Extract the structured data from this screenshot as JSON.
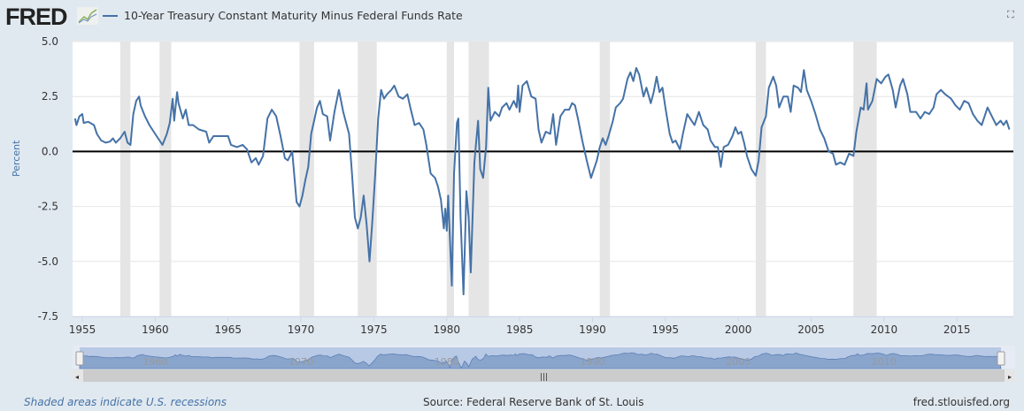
{
  "header": {
    "logo_text": "FRED",
    "legend_label": "10-Year Treasury Constant Maturity Minus Federal Funds Rate",
    "fullscreen_icon": "expand-icon"
  },
  "footer": {
    "note": "Shaded areas indicate U.S. recessions",
    "source": "Source: Federal Reserve Bank of St. Louis",
    "site": "fred.stlouisfed.org"
  },
  "colors": {
    "series": "#4572a7",
    "recession": "#e5e5e5",
    "zero_line": "#000000"
  },
  "chart_data": {
    "type": "line",
    "title": "10-Year Treasury Constant Maturity Minus Federal Funds Rate",
    "xlabel": "",
    "ylabel": "Percent",
    "xlim": [
      1954.5,
      2018.8
    ],
    "ylim": [
      -7.5,
      5.0
    ],
    "yticks": [
      "5.0",
      "2.5",
      "0.0",
      "-2.5",
      "-5.0",
      "-7.5"
    ],
    "ytick_values": [
      5.0,
      2.5,
      0.0,
      -2.5,
      -5.0,
      -7.5
    ],
    "xticks": [
      "1955",
      "1960",
      "1965",
      "1970",
      "1975",
      "1980",
      "1985",
      "1990",
      "1995",
      "2000",
      "2005",
      "2010",
      "2015"
    ],
    "navigator_ticks": [
      "1960",
      "1970",
      "1980",
      "1990",
      "2000",
      "2010"
    ],
    "grid": true,
    "recessions": [
      [
        1957.6,
        1958.3
      ],
      [
        1960.3,
        1961.1
      ],
      [
        1969.9,
        1970.9
      ],
      [
        1973.9,
        1975.2
      ],
      [
        1980.0,
        1980.5
      ],
      [
        1981.5,
        1982.9
      ],
      [
        1990.5,
        1991.2
      ],
      [
        2001.2,
        2001.9
      ],
      [
        2007.9,
        2009.5
      ]
    ],
    "series": [
      {
        "name": "10-Year Treasury Constant Maturity Minus Federal Funds Rate",
        "points": [
          [
            1954.5,
            1.5
          ],
          [
            1954.6,
            1.2
          ],
          [
            1954.8,
            1.6
          ],
          [
            1955.0,
            1.7
          ],
          [
            1955.1,
            1.3
          ],
          [
            1955.4,
            1.35
          ],
          [
            1955.8,
            1.2
          ],
          [
            1956.0,
            0.8
          ],
          [
            1956.3,
            0.5
          ],
          [
            1956.6,
            0.4
          ],
          [
            1956.9,
            0.45
          ],
          [
            1957.1,
            0.6
          ],
          [
            1957.3,
            0.4
          ],
          [
            1957.6,
            0.6
          ],
          [
            1957.9,
            0.9
          ],
          [
            1958.1,
            0.4
          ],
          [
            1958.3,
            0.3
          ],
          [
            1958.5,
            1.7
          ],
          [
            1958.7,
            2.3
          ],
          [
            1958.9,
            2.5
          ],
          [
            1959.0,
            2.1
          ],
          [
            1959.3,
            1.6
          ],
          [
            1959.6,
            1.2
          ],
          [
            1959.9,
            0.9
          ],
          [
            1960.2,
            0.6
          ],
          [
            1960.5,
            0.3
          ],
          [
            1960.8,
            0.8
          ],
          [
            1961.0,
            1.3
          ],
          [
            1961.2,
            2.4
          ],
          [
            1961.3,
            1.4
          ],
          [
            1961.5,
            2.7
          ],
          [
            1961.6,
            2.2
          ],
          [
            1961.9,
            1.5
          ],
          [
            1962.1,
            1.9
          ],
          [
            1962.3,
            1.2
          ],
          [
            1962.6,
            1.2
          ],
          [
            1963.0,
            1.0
          ],
          [
            1963.5,
            0.9
          ],
          [
            1963.7,
            0.4
          ],
          [
            1964.0,
            0.7
          ],
          [
            1964.5,
            0.7
          ],
          [
            1965.0,
            0.7
          ],
          [
            1965.2,
            0.3
          ],
          [
            1965.6,
            0.2
          ],
          [
            1966.0,
            0.3
          ],
          [
            1966.3,
            0.1
          ],
          [
            1966.6,
            -0.5
          ],
          [
            1966.9,
            -0.3
          ],
          [
            1967.1,
            -0.6
          ],
          [
            1967.4,
            -0.2
          ],
          [
            1967.7,
            1.5
          ],
          [
            1968.0,
            1.9
          ],
          [
            1968.3,
            1.6
          ],
          [
            1968.6,
            0.7
          ],
          [
            1968.9,
            -0.3
          ],
          [
            1969.1,
            -0.4
          ],
          [
            1969.4,
            0.0
          ],
          [
            1969.7,
            -2.3
          ],
          [
            1969.9,
            -2.5
          ],
          [
            1970.1,
            -2.0
          ],
          [
            1970.3,
            -1.3
          ],
          [
            1970.5,
            -0.7
          ],
          [
            1970.7,
            0.8
          ],
          [
            1970.9,
            1.4
          ],
          [
            1971.1,
            2.0
          ],
          [
            1971.3,
            2.3
          ],
          [
            1971.5,
            1.7
          ],
          [
            1971.8,
            1.6
          ],
          [
            1972.0,
            0.5
          ],
          [
            1972.3,
            1.8
          ],
          [
            1972.6,
            2.8
          ],
          [
            1972.9,
            1.8
          ],
          [
            1973.1,
            1.3
          ],
          [
            1973.3,
            0.8
          ],
          [
            1973.5,
            -1.0
          ],
          [
            1973.7,
            -3.0
          ],
          [
            1973.9,
            -3.5
          ],
          [
            1974.1,
            -3.0
          ],
          [
            1974.3,
            -2.0
          ],
          [
            1974.5,
            -3.3
          ],
          [
            1974.7,
            -5.0
          ],
          [
            1974.9,
            -3.1
          ],
          [
            1975.1,
            -1.0
          ],
          [
            1975.3,
            1.5
          ],
          [
            1975.5,
            2.8
          ],
          [
            1975.7,
            2.4
          ],
          [
            1975.9,
            2.6
          ],
          [
            1976.2,
            2.8
          ],
          [
            1976.4,
            3.0
          ],
          [
            1976.7,
            2.5
          ],
          [
            1977.0,
            2.4
          ],
          [
            1977.3,
            2.6
          ],
          [
            1977.5,
            2.0
          ],
          [
            1977.8,
            1.2
          ],
          [
            1978.1,
            1.3
          ],
          [
            1978.4,
            1.0
          ],
          [
            1978.6,
            0.3
          ],
          [
            1978.9,
            -1.0
          ],
          [
            1979.2,
            -1.2
          ],
          [
            1979.4,
            -1.6
          ],
          [
            1979.6,
            -2.2
          ],
          [
            1979.8,
            -3.5
          ],
          [
            1979.9,
            -2.6
          ],
          [
            1980.0,
            -3.6
          ],
          [
            1980.1,
            -2.0
          ],
          [
            1980.35,
            -6.1
          ],
          [
            1980.5,
            -1.0
          ],
          [
            1980.7,
            1.3
          ],
          [
            1980.8,
            1.5
          ],
          [
            1980.95,
            -3.0
          ],
          [
            1981.15,
            -6.5
          ],
          [
            1981.35,
            -1.8
          ],
          [
            1981.5,
            -3.0
          ],
          [
            1981.65,
            -5.5
          ],
          [
            1981.9,
            -0.5
          ],
          [
            1982.0,
            0.3
          ],
          [
            1982.15,
            1.4
          ],
          [
            1982.3,
            -0.8
          ],
          [
            1982.5,
            -1.2
          ],
          [
            1982.7,
            0.2
          ],
          [
            1982.85,
            2.9
          ],
          [
            1983.0,
            1.4
          ],
          [
            1983.3,
            1.8
          ],
          [
            1983.6,
            1.6
          ],
          [
            1983.8,
            2.0
          ],
          [
            1984.1,
            2.2
          ],
          [
            1984.3,
            1.9
          ],
          [
            1984.6,
            2.3
          ],
          [
            1984.8,
            2.0
          ],
          [
            1984.9,
            3.0
          ],
          [
            1985.0,
            1.8
          ],
          [
            1985.2,
            3.0
          ],
          [
            1985.5,
            3.2
          ],
          [
            1985.8,
            2.5
          ],
          [
            1986.1,
            2.4
          ],
          [
            1986.3,
            1.0
          ],
          [
            1986.5,
            0.4
          ],
          [
            1986.8,
            0.9
          ],
          [
            1987.1,
            0.8
          ],
          [
            1987.3,
            1.7
          ],
          [
            1987.5,
            0.3
          ],
          [
            1987.8,
            1.6
          ],
          [
            1988.1,
            1.9
          ],
          [
            1988.4,
            1.9
          ],
          [
            1988.6,
            2.2
          ],
          [
            1988.8,
            2.1
          ],
          [
            1989.0,
            1.5
          ],
          [
            1989.3,
            0.5
          ],
          [
            1989.6,
            -0.4
          ],
          [
            1989.9,
            -1.2
          ],
          [
            1990.1,
            -0.8
          ],
          [
            1990.3,
            -0.4
          ],
          [
            1990.5,
            0.2
          ],
          [
            1990.7,
            0.6
          ],
          [
            1990.9,
            0.3
          ],
          [
            1991.1,
            0.7
          ],
          [
            1991.4,
            1.4
          ],
          [
            1991.6,
            2.0
          ],
          [
            1991.9,
            2.2
          ],
          [
            1992.1,
            2.4
          ],
          [
            1992.4,
            3.3
          ],
          [
            1992.6,
            3.6
          ],
          [
            1992.8,
            3.2
          ],
          [
            1993.0,
            3.8
          ],
          [
            1993.2,
            3.5
          ],
          [
            1993.5,
            2.5
          ],
          [
            1993.7,
            2.9
          ],
          [
            1994.0,
            2.2
          ],
          [
            1994.2,
            2.7
          ],
          [
            1994.4,
            3.4
          ],
          [
            1994.6,
            2.7
          ],
          [
            1994.8,
            2.9
          ],
          [
            1995.0,
            2.0
          ],
          [
            1995.3,
            0.8
          ],
          [
            1995.5,
            0.4
          ],
          [
            1995.7,
            0.5
          ],
          [
            1996.0,
            0.1
          ],
          [
            1996.2,
            0.8
          ],
          [
            1996.5,
            1.7
          ],
          [
            1996.8,
            1.4
          ],
          [
            1997.0,
            1.2
          ],
          [
            1997.3,
            1.8
          ],
          [
            1997.6,
            1.2
          ],
          [
            1997.9,
            1.0
          ],
          [
            1998.1,
            0.5
          ],
          [
            1998.4,
            0.2
          ],
          [
            1998.6,
            0.2
          ],
          [
            1998.8,
            -0.7
          ],
          [
            1999.0,
            0.2
          ],
          [
            1999.3,
            0.3
          ],
          [
            1999.6,
            0.7
          ],
          [
            1999.8,
            1.1
          ],
          [
            2000.0,
            0.8
          ],
          [
            2000.2,
            0.9
          ],
          [
            2000.4,
            0.4
          ],
          [
            2000.6,
            -0.2
          ],
          [
            2000.9,
            -0.8
          ],
          [
            2001.2,
            -1.1
          ],
          [
            2001.4,
            -0.4
          ],
          [
            2001.6,
            1.1
          ],
          [
            2001.9,
            1.6
          ],
          [
            2002.1,
            2.9
          ],
          [
            2002.4,
            3.4
          ],
          [
            2002.6,
            3.0
          ],
          [
            2002.8,
            2.0
          ],
          [
            2003.1,
            2.5
          ],
          [
            2003.4,
            2.5
          ],
          [
            2003.6,
            1.8
          ],
          [
            2003.8,
            3.0
          ],
          [
            2004.1,
            2.9
          ],
          [
            2004.3,
            2.7
          ],
          [
            2004.5,
            3.7
          ],
          [
            2004.7,
            2.8
          ],
          [
            2005.0,
            2.3
          ],
          [
            2005.3,
            1.7
          ],
          [
            2005.6,
            1.0
          ],
          [
            2005.9,
            0.6
          ],
          [
            2006.2,
            0.0
          ],
          [
            2006.5,
            -0.1
          ],
          [
            2006.7,
            -0.6
          ],
          [
            2007.0,
            -0.5
          ],
          [
            2007.3,
            -0.6
          ],
          [
            2007.6,
            -0.1
          ],
          [
            2007.9,
            -0.2
          ],
          [
            2008.1,
            0.9
          ],
          [
            2008.4,
            2.0
          ],
          [
            2008.6,
            1.9
          ],
          [
            2008.8,
            3.1
          ],
          [
            2008.9,
            1.9
          ],
          [
            2009.2,
            2.3
          ],
          [
            2009.5,
            3.3
          ],
          [
            2009.8,
            3.1
          ],
          [
            2010.1,
            3.4
          ],
          [
            2010.3,
            3.5
          ],
          [
            2010.6,
            2.8
          ],
          [
            2010.8,
            2.0
          ],
          [
            2011.1,
            3.0
          ],
          [
            2011.3,
            3.3
          ],
          [
            2011.6,
            2.6
          ],
          [
            2011.8,
            1.8
          ],
          [
            2012.2,
            1.8
          ],
          [
            2012.5,
            1.5
          ],
          [
            2012.8,
            1.8
          ],
          [
            2013.1,
            1.7
          ],
          [
            2013.4,
            2.0
          ],
          [
            2013.6,
            2.6
          ],
          [
            2013.9,
            2.8
          ],
          [
            2014.2,
            2.6
          ],
          [
            2014.6,
            2.4
          ],
          [
            2014.9,
            2.1
          ],
          [
            2015.2,
            1.9
          ],
          [
            2015.5,
            2.3
          ],
          [
            2015.8,
            2.2
          ],
          [
            2016.1,
            1.7
          ],
          [
            2016.4,
            1.4
          ],
          [
            2016.7,
            1.2
          ],
          [
            2016.9,
            1.6
          ],
          [
            2017.1,
            2.0
          ],
          [
            2017.4,
            1.6
          ],
          [
            2017.7,
            1.2
          ],
          [
            2018.0,
            1.4
          ],
          [
            2018.2,
            1.2
          ],
          [
            2018.4,
            1.4
          ],
          [
            2018.6,
            1.0
          ]
        ]
      }
    ]
  }
}
